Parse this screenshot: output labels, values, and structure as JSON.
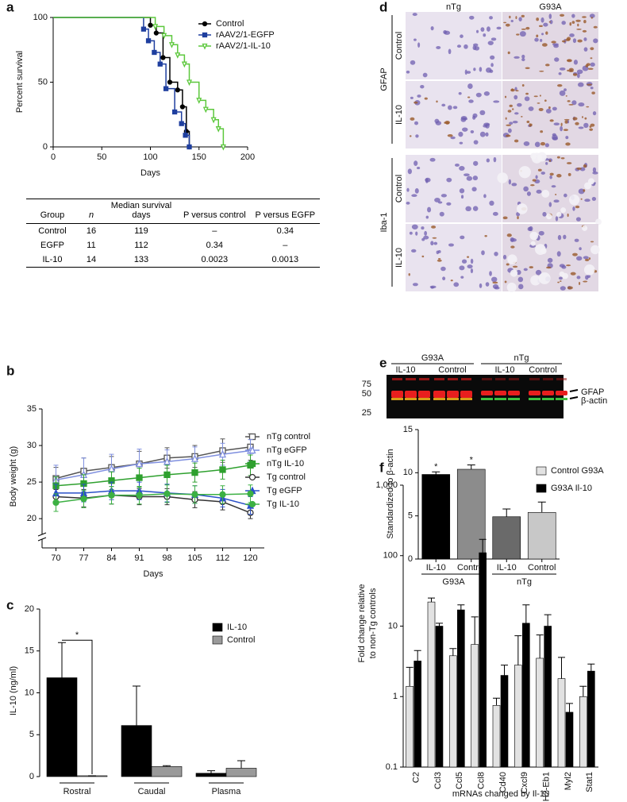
{
  "chart_data": [
    {
      "panel": "a",
      "type": "step",
      "ylabel": "Percent survival",
      "xlabel": "Days",
      "xlim": [
        0,
        200
      ],
      "xticks": [
        0,
        50,
        100,
        150,
        200
      ],
      "ylim": [
        0,
        100
      ],
      "yticks": [
        0,
        50,
        100
      ],
      "series": [
        {
          "name": "Control",
          "color": "#000000",
          "marker": "circle",
          "x": [
            0,
            100,
            106,
            113,
            120,
            128,
            133,
            137,
            140
          ],
          "values": [
            100,
            94,
            88,
            69,
            50,
            44,
            31,
            12,
            0
          ]
        },
        {
          "name": "rAAV2/1-EGFP",
          "color": "#1f3f9f",
          "marker": "square",
          "x": [
            0,
            93,
            98,
            104,
            110,
            116,
            125,
            132,
            136,
            140
          ],
          "values": [
            100,
            91,
            82,
            73,
            64,
            45,
            27,
            18,
            9,
            0
          ]
        },
        {
          "name": "rAAV2/1-IL-10",
          "color": "#5cc83c",
          "marker": "triangle-down",
          "x": [
            0,
            105,
            114,
            122,
            128,
            135,
            140,
            150,
            157,
            165,
            170,
            175
          ],
          "values": [
            100,
            93,
            86,
            79,
            71,
            64,
            50,
            36,
            29,
            21,
            14,
            0
          ]
        }
      ]
    },
    {
      "panel": "b",
      "type": "line",
      "ylabel": "Body weight (g)",
      "xlabel": "Days",
      "categories": [
        70,
        77,
        84,
        91,
        98,
        105,
        112,
        120
      ],
      "ylim": [
        16,
        35
      ],
      "yticks": [
        20,
        25,
        30,
        35
      ],
      "series": [
        {
          "name": "nTg control",
          "color": "#555555",
          "marker": "square",
          "filled": false,
          "values": [
            25.5,
            26.5,
            27,
            27.5,
            28.3,
            28.5,
            29.3,
            29.8
          ],
          "errors": [
            1.5,
            1.8,
            1.5,
            1.7,
            1.4,
            1.5,
            1.6,
            1.8
          ]
        },
        {
          "name": "nTg eGFP",
          "color": "#7f8fdf",
          "marker": "triangle",
          "filled": false,
          "values": [
            25.3,
            26,
            26.8,
            27.5,
            27.8,
            28.2,
            28.8,
            29.3
          ],
          "errors": [
            2,
            2.3,
            2,
            2,
            1.6,
            1.6,
            1.5,
            1.5
          ]
        },
        {
          "name": "nTg IL-10",
          "color": "#2ea02e",
          "marker": "square",
          "filled": true,
          "values": [
            24.5,
            24.8,
            25.2,
            25.6,
            26,
            26.3,
            26.7,
            27.3
          ],
          "errors": [
            1.2,
            1.2,
            1.2,
            1.3,
            1.3,
            1.3,
            1.3,
            1.4
          ]
        },
        {
          "name": "Tg control",
          "color": "#333333",
          "marker": "circle",
          "filled": false,
          "values": [
            23,
            22.8,
            23.2,
            23,
            23,
            22.6,
            22.3,
            20.8
          ],
          "errors": [
            1,
            1.2,
            1.2,
            1.1,
            1.1,
            1.1,
            1.1,
            0.8
          ]
        },
        {
          "name": "Tg eGFP",
          "color": "#2a50c8",
          "marker": "triangle",
          "filled": true,
          "values": [
            23.5,
            23.5,
            23.8,
            23.8,
            23.5,
            23.3,
            22.8,
            21.8
          ],
          "errors": [
            1.2,
            1.2,
            1.2,
            1.2,
            1.2,
            1.2,
            1.2,
            1.2
          ]
        },
        {
          "name": "Tg IL-10",
          "color": "#3cb043",
          "marker": "circle",
          "filled": true,
          "values": [
            22.2,
            22.7,
            23.2,
            23.2,
            23.4,
            23.3,
            23.3,
            23.4
          ],
          "errors": [
            1.2,
            1.2,
            1.2,
            1.2,
            1.2,
            1.2,
            1.2,
            1.2
          ]
        }
      ]
    },
    {
      "panel": "c",
      "type": "bar",
      "ylabel": "IL-10 (ng/ml)",
      "categories": [
        "Rostral",
        "Caudal",
        "Plasma"
      ],
      "ylim": [
        0,
        20
      ],
      "yticks": [
        0,
        5,
        10,
        15,
        20
      ],
      "annotations": [
        "*"
      ],
      "series": [
        {
          "name": "IL-10",
          "color": "#000000",
          "values": [
            11.8,
            6.1,
            0.4
          ],
          "errors": [
            4.2,
            4.7,
            0.3
          ]
        },
        {
          "name": "Control",
          "color": "#9a9a9a",
          "values": [
            0.1,
            1.2,
            1.0
          ],
          "errors": [
            0,
            0.1,
            0.9
          ]
        }
      ]
    },
    {
      "panel": "e",
      "type": "bar",
      "ylabel": "Standardized to β-actin",
      "categories": [
        "IL-10",
        "Control",
        "IL-10",
        "Control"
      ],
      "groups": [
        "G93A",
        "nTg"
      ],
      "values": [
        9.8,
        10.4,
        4.9,
        5.4
      ],
      "errors": [
        0.3,
        0.5,
        0.9,
        1.2
      ],
      "colors": [
        "#000000",
        "#8c8c8c",
        "#6a6a6a",
        "#c8c8c8"
      ],
      "significance": [
        "*",
        "*",
        null,
        null
      ],
      "ylim": [
        0,
        15
      ],
      "yticks": [
        0,
        5,
        10,
        15
      ]
    },
    {
      "panel": "f",
      "type": "bar",
      "log": true,
      "ylabel": [
        "Fold change relative",
        "to non-Tg controls"
      ],
      "xlabel": "mRNAs changed by Il-10",
      "categories": [
        "C2",
        "Ccl3",
        "Ccl5",
        "Ccl8",
        "Cd40",
        "Cxcl9",
        "H2-Eb1",
        "Myl2",
        "Stat1"
      ],
      "ylim": [
        0.1,
        1000
      ],
      "yticks": [
        0.1,
        1,
        10,
        100,
        {
          "value": 1000,
          "label": "1,000"
        }
      ],
      "series": [
        {
          "name": "Control G93A",
          "color": "#e2e2e2",
          "values": [
            1.4,
            22,
            3.8,
            5.5,
            0.75,
            2.8,
            3.5,
            1.8,
            1.0
          ],
          "errors": [
            1.2,
            3,
            1,
            8,
            0.2,
            4.5,
            4,
            1.8,
            0.4
          ]
        },
        {
          "name": "G93A Il-10",
          "color": "#000000",
          "values": [
            3.2,
            10,
            17,
            110,
            2.0,
            11,
            10,
            0.6,
            2.3
          ],
          "errors": [
            1.3,
            1,
            3,
            60,
            0.8,
            9,
            4.5,
            0.2,
            0.6
          ]
        }
      ]
    }
  ],
  "table": {
    "header": [
      "Group",
      "n",
      "Median survival days",
      "P versus control",
      "P versus EGFP"
    ],
    "rows": [
      [
        "Control",
        "16",
        "119",
        "–",
        "0.34"
      ],
      [
        "EGFP",
        "11",
        "112",
        "0.34",
        "–"
      ],
      [
        "IL-10",
        "14",
        "133",
        "0.0023",
        "0.0013"
      ]
    ]
  },
  "micrographs": {
    "panel": "d",
    "columns": [
      "nTg",
      "G93A"
    ],
    "stains": [
      {
        "name": "GFAP",
        "rows": [
          "Control",
          "IL-10"
        ]
      },
      {
        "name": "Iba-1",
        "rows": [
          "Control",
          "IL-10"
        ]
      }
    ]
  },
  "blot": {
    "groups": [
      "G93A",
      "nTg"
    ],
    "lanes": [
      "IL-10",
      "Control",
      "IL-10",
      "Control"
    ],
    "markers": [
      "75",
      "50",
      "25"
    ],
    "bands": [
      "GFAP",
      "β-actin"
    ]
  }
}
